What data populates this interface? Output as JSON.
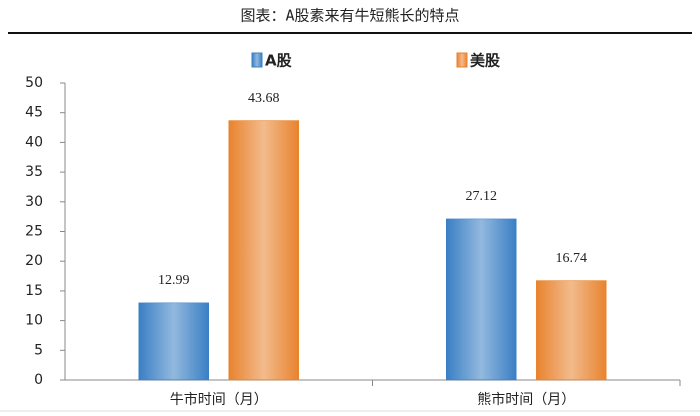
{
  "chart_data": {
    "type": "bar",
    "title": "图表：A股素来有牛短熊长的特点",
    "categories": [
      "牛市时间（月）",
      "熊市时间（月）"
    ],
    "series": [
      {
        "name": "A股",
        "color": "#3a7fc4",
        "values": [
          12.99,
          27.12
        ]
      },
      {
        "name": "美股",
        "color": "#e8832e",
        "values": [
          43.68,
          16.74
        ]
      }
    ],
    "ylim": [
      0,
      50
    ],
    "yticks": [
      0,
      5,
      10,
      15,
      20,
      25,
      30,
      35,
      40,
      45,
      50
    ],
    "grid": false
  }
}
